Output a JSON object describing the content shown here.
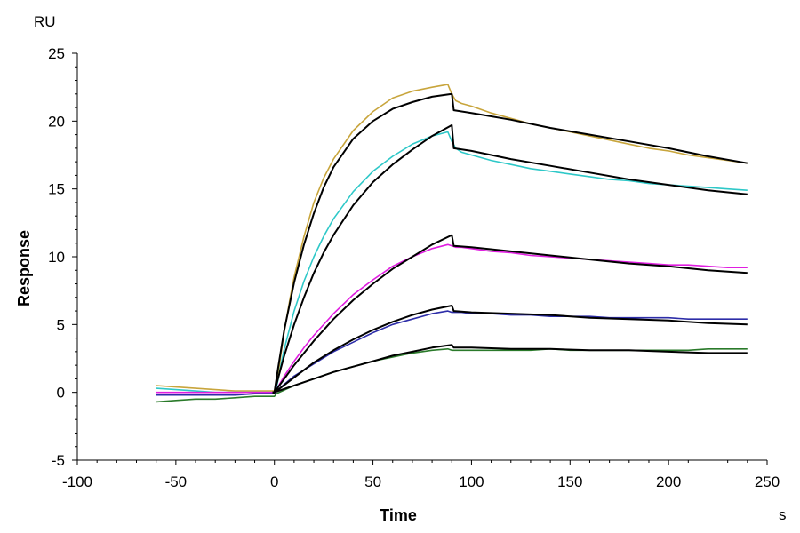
{
  "chart_data": {
    "type": "line",
    "title": "",
    "xlabel": "Time",
    "ylabel": "Response",
    "x_unit": "s",
    "y_unit": "RU",
    "xlim": [
      -100,
      250
    ],
    "ylim": [
      -5,
      25
    ],
    "x_ticks": [
      -100,
      -50,
      0,
      50,
      100,
      150,
      200,
      250
    ],
    "y_ticks": [
      -5,
      0,
      5,
      10,
      15,
      20,
      25
    ],
    "grid": false,
    "legend": "none",
    "colors": {
      "axis": "#000000",
      "fit": "#000000"
    },
    "series": [
      {
        "color": "#c8a53c",
        "x": [
          -60,
          -50,
          -40,
          -30,
          -20,
          -10,
          -1,
          0,
          1,
          3,
          5,
          8,
          10,
          15,
          20,
          25,
          30,
          40,
          50,
          60,
          70,
          80,
          88,
          90,
          92,
          95,
          100,
          110,
          120,
          130,
          140,
          150,
          160,
          170,
          180,
          190,
          200,
          210,
          220,
          230,
          240
        ],
        "y": [
          0.5,
          0.4,
          0.3,
          0.2,
          0.1,
          0.1,
          0.1,
          0.1,
          0.5,
          2.5,
          4.5,
          7.0,
          8.5,
          11.5,
          14.0,
          15.8,
          17.2,
          19.3,
          20.7,
          21.7,
          22.2,
          22.5,
          22.7,
          22.0,
          21.5,
          21.3,
          21.1,
          20.6,
          20.2,
          19.8,
          19.5,
          19.2,
          18.9,
          18.6,
          18.3,
          18.0,
          17.8,
          17.5,
          17.3,
          17.1,
          16.9
        ]
      },
      {
        "color": "#2ec8c8",
        "x": [
          -60,
          -50,
          -40,
          -30,
          -20,
          -10,
          -1,
          0,
          1,
          3,
          5,
          10,
          15,
          20,
          25,
          30,
          40,
          50,
          60,
          70,
          80,
          88,
          90,
          92,
          95,
          100,
          110,
          120,
          130,
          140,
          150,
          160,
          170,
          180,
          190,
          200,
          210,
          220,
          230,
          240
        ],
        "y": [
          0.3,
          0.2,
          0.1,
          0.0,
          0.0,
          0.0,
          0.0,
          0.0,
          0.3,
          1.8,
          3.2,
          6.0,
          8.2,
          10.0,
          11.5,
          12.8,
          14.8,
          16.3,
          17.4,
          18.3,
          18.9,
          19.2,
          18.5,
          18.0,
          17.7,
          17.5,
          17.1,
          16.8,
          16.5,
          16.3,
          16.1,
          15.9,
          15.7,
          15.6,
          15.4,
          15.3,
          15.2,
          15.1,
          15.0,
          14.9
        ]
      },
      {
        "color": "#e01ee0",
        "x": [
          -60,
          -50,
          -40,
          -30,
          -20,
          -10,
          -1,
          0,
          1,
          5,
          10,
          15,
          20,
          30,
          40,
          50,
          60,
          70,
          80,
          88,
          90,
          92,
          95,
          100,
          110,
          120,
          130,
          140,
          150,
          160,
          170,
          180,
          190,
          200,
          210,
          220,
          230,
          240
        ],
        "y": [
          0.0,
          0.0,
          0.0,
          0.0,
          0.0,
          0.0,
          0.0,
          0.0,
          0.2,
          1.2,
          2.3,
          3.3,
          4.2,
          5.8,
          7.2,
          8.3,
          9.3,
          10.0,
          10.6,
          10.9,
          10.8,
          10.7,
          10.7,
          10.6,
          10.4,
          10.3,
          10.1,
          10.0,
          9.9,
          9.8,
          9.7,
          9.6,
          9.5,
          9.4,
          9.4,
          9.3,
          9.2,
          9.2
        ]
      },
      {
        "color": "#2d2da8",
        "x": [
          -60,
          -50,
          -40,
          -30,
          -20,
          -10,
          -1,
          0,
          1,
          10,
          20,
          30,
          40,
          50,
          60,
          70,
          80,
          88,
          90,
          92,
          95,
          100,
          110,
          120,
          130,
          140,
          150,
          160,
          170,
          180,
          190,
          200,
          210,
          220,
          230,
          240
        ],
        "y": [
          -0.2,
          -0.2,
          -0.2,
          -0.2,
          -0.2,
          -0.1,
          -0.1,
          -0.1,
          0.1,
          1.2,
          2.1,
          3.0,
          3.7,
          4.4,
          5.0,
          5.4,
          5.8,
          6.0,
          5.9,
          5.9,
          5.9,
          5.8,
          5.8,
          5.7,
          5.7,
          5.6,
          5.6,
          5.6,
          5.5,
          5.5,
          5.5,
          5.5,
          5.4,
          5.4,
          5.4,
          5.4
        ]
      },
      {
        "color": "#2a7a2a",
        "x": [
          -60,
          -50,
          -40,
          -30,
          -20,
          -10,
          -1,
          0,
          1,
          10,
          20,
          30,
          40,
          50,
          60,
          70,
          80,
          88,
          90,
          92,
          95,
          100,
          110,
          120,
          130,
          140,
          150,
          160,
          170,
          180,
          190,
          200,
          210,
          220,
          230,
          240
        ],
        "y": [
          -0.7,
          -0.6,
          -0.5,
          -0.5,
          -0.4,
          -0.3,
          -0.3,
          -0.3,
          -0.1,
          0.5,
          1.0,
          1.5,
          1.9,
          2.3,
          2.6,
          2.9,
          3.1,
          3.2,
          3.1,
          3.1,
          3.1,
          3.1,
          3.1,
          3.1,
          3.1,
          3.2,
          3.1,
          3.1,
          3.1,
          3.1,
          3.1,
          3.1,
          3.1,
          3.2,
          3.2,
          3.2
        ]
      },
      {
        "color": "#000000",
        "x": [
          -1,
          0,
          2,
          5,
          10,
          15,
          20,
          25,
          30,
          40,
          50,
          60,
          70,
          80,
          90,
          91,
          100,
          120,
          140,
          160,
          180,
          200,
          220,
          240
        ],
        "y": [
          0.0,
          0.0,
          1.9,
          4.6,
          8.1,
          10.9,
          13.2,
          15.1,
          16.6,
          18.7,
          20.0,
          20.9,
          21.4,
          21.8,
          22.0,
          20.8,
          20.6,
          20.1,
          19.5,
          19.0,
          18.5,
          18.0,
          17.4,
          16.9
        ]
      },
      {
        "color": "#000000",
        "x": [
          -1,
          0,
          2,
          5,
          10,
          15,
          20,
          25,
          30,
          40,
          50,
          60,
          70,
          80,
          90,
          91,
          100,
          120,
          140,
          160,
          180,
          200,
          220,
          240
        ],
        "y": [
          0.0,
          0.0,
          1.1,
          2.7,
          5.0,
          7.0,
          8.8,
          10.3,
          11.6,
          13.8,
          15.5,
          16.8,
          17.9,
          18.9,
          19.7,
          18.0,
          17.8,
          17.2,
          16.7,
          16.2,
          15.7,
          15.3,
          14.9,
          14.6
        ]
      },
      {
        "color": "#000000",
        "x": [
          -1,
          0,
          2,
          5,
          10,
          20,
          30,
          40,
          50,
          60,
          70,
          80,
          90,
          91,
          100,
          120,
          140,
          160,
          180,
          200,
          220,
          240
        ],
        "y": [
          0.0,
          0.0,
          0.4,
          1.0,
          2.0,
          3.8,
          5.4,
          6.8,
          8.0,
          9.1,
          10.0,
          10.9,
          11.6,
          10.8,
          10.7,
          10.4,
          10.1,
          9.8,
          9.5,
          9.3,
          9.0,
          8.8
        ]
      },
      {
        "color": "#000000",
        "x": [
          -1,
          0,
          2,
          10,
          20,
          30,
          40,
          50,
          60,
          70,
          80,
          90,
          91,
          100,
          120,
          140,
          160,
          180,
          200,
          220,
          240
        ],
        "y": [
          0.0,
          0.0,
          0.2,
          1.1,
          2.2,
          3.1,
          3.9,
          4.6,
          5.2,
          5.7,
          6.1,
          6.4,
          6.0,
          5.9,
          5.8,
          5.7,
          5.5,
          5.4,
          5.3,
          5.1,
          5.0
        ]
      },
      {
        "color": "#000000",
        "x": [
          -1,
          0,
          2,
          10,
          20,
          30,
          40,
          50,
          60,
          70,
          80,
          90,
          91,
          100,
          120,
          140,
          160,
          180,
          200,
          220,
          240
        ],
        "y": [
          0.0,
          0.0,
          0.1,
          0.5,
          1.0,
          1.5,
          1.9,
          2.3,
          2.7,
          3.0,
          3.3,
          3.5,
          3.3,
          3.3,
          3.2,
          3.2,
          3.1,
          3.1,
          3.0,
          2.9,
          2.9
        ]
      }
    ]
  }
}
